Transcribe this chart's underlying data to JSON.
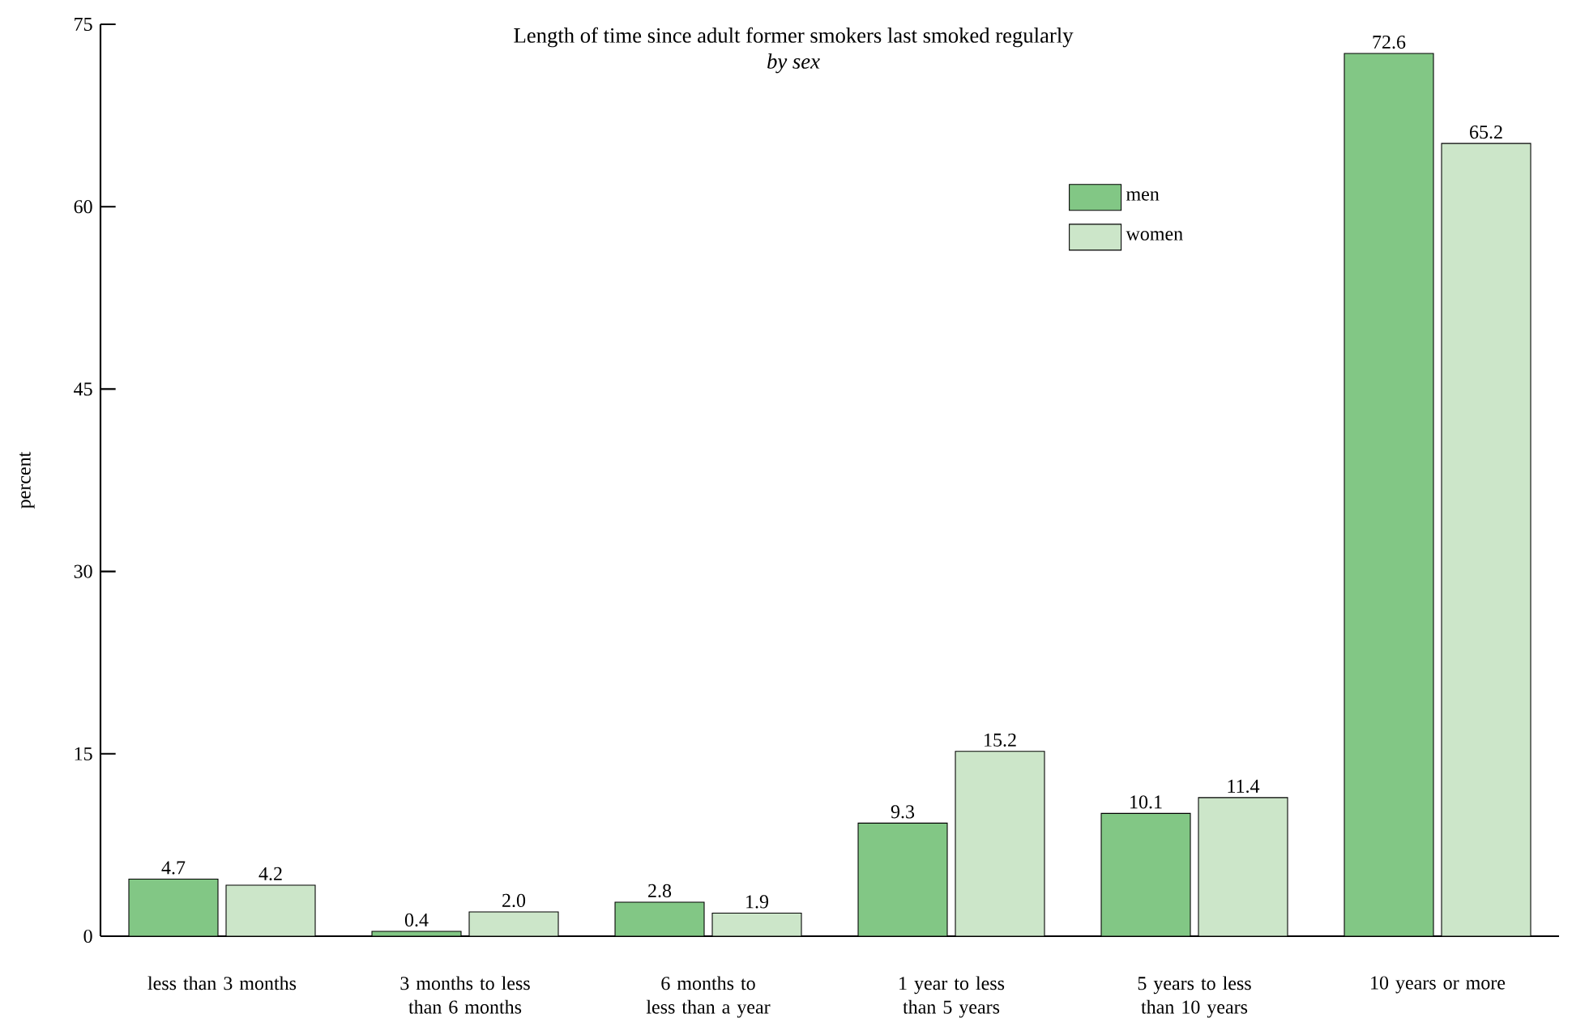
{
  "chart_data": {
    "type": "bar",
    "title": "Length of time since adult former smokers last smoked regularly",
    "subtitle": "by sex",
    "ylabel": "percent",
    "categories": [
      "less than 3 months",
      "3 months to less than 6 months",
      "6 months to less than a year",
      "1 year to less than 5 years",
      "5 years to less than 10 years",
      "10 years or more"
    ],
    "series": [
      {
        "name": "men",
        "color": "#82c785",
        "values": [
          4.7,
          0.4,
          2.8,
          9.3,
          10.1,
          72.6
        ],
        "value_labels": [
          "4.7",
          "0.4",
          "2.8",
          "9.3",
          "10.1",
          "72.6"
        ]
      },
      {
        "name": "women",
        "color": "#cce6c9",
        "values": [
          4.2,
          2.0,
          1.9,
          15.2,
          11.4,
          65.2
        ],
        "value_labels": [
          "4.2",
          "2.0",
          "1.9",
          "15.2",
          "11.4",
          "65.2"
        ]
      }
    ],
    "ylim": [
      0,
      75
    ],
    "yticks": [
      0,
      15,
      30,
      45,
      60,
      75
    ],
    "legend": "top right",
    "grid": false
  }
}
